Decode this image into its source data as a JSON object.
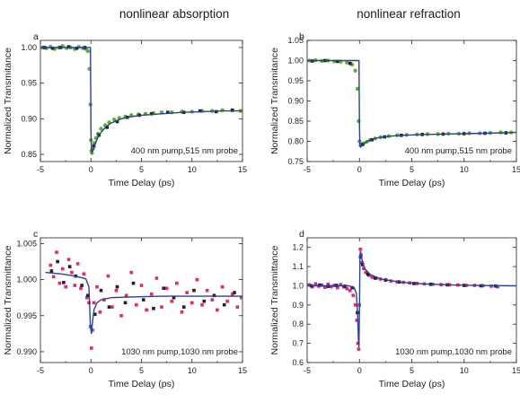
{
  "column_titles": [
    "nonlinear absorption",
    "nonlinear refraction"
  ],
  "colors": {
    "green_data": "#5ab52e",
    "dark_data": "#2a1a2a",
    "pink_data": "#e0296e",
    "fit_line": "#2a3f9e",
    "axis": "#222222"
  },
  "chart_data": [
    {
      "panel": "a",
      "type": "scatter",
      "annotation": "400 nm pump,515 nm probe",
      "xlabel": "Time Delay (ps)",
      "ylabel": "Normalized Transmitance",
      "xlim": [
        -5,
        15
      ],
      "ylim": [
        0.84,
        1.01
      ],
      "xticks": [
        -5,
        0,
        5,
        10,
        15
      ],
      "xtick_labels": [
        "-5",
        "0",
        "5",
        "10",
        "15"
      ],
      "yticks": [
        0.85,
        0.9,
        0.95,
        1.0
      ],
      "ytick_labels": [
        "0.85",
        "0.90",
        "0.95",
        "1.00"
      ],
      "series": [
        {
          "color": "green",
          "x": [
            -4.8,
            -4.4,
            -4.0,
            -3.6,
            -3.2,
            -2.8,
            -2.4,
            -2.0,
            -1.6,
            -1.2,
            -0.8,
            -0.5,
            -0.3,
            -0.15,
            -0.05,
            0.0,
            0.05,
            0.1,
            0.2,
            0.35,
            0.5,
            0.7,
            1.0,
            1.4,
            1.8,
            2.3,
            2.8,
            3.4,
            4.0,
            4.7,
            5.4,
            6.2,
            7.0,
            8.0,
            9.0,
            10.0,
            11.0,
            12.0,
            13.0,
            14.0,
            14.8
          ],
          "y": [
            1.0,
            0.999,
            1.001,
            0.998,
            1.0,
            1.002,
            0.999,
            1.0,
            0.998,
            1.001,
            0.999,
            0.998,
            0.995,
            0.97,
            0.92,
            0.87,
            0.855,
            0.852,
            0.858,
            0.866,
            0.873,
            0.879,
            0.886,
            0.891,
            0.895,
            0.899,
            0.901,
            0.903,
            0.905,
            0.906,
            0.907,
            0.908,
            0.909,
            0.909,
            0.91,
            0.91,
            0.911,
            0.911,
            0.912,
            0.912,
            0.911
          ]
        },
        {
          "color": "dark",
          "x": [
            -4.6,
            -3.8,
            -3.0,
            -2.2,
            -1.4,
            -0.6,
            0.3,
            0.8,
            1.6,
            2.6,
            3.6,
            4.8,
            6.0,
            7.6,
            9.2,
            10.8,
            12.4,
            14.0
          ],
          "y": [
            1.0,
            0.999,
            1.0,
            1.001,
            0.999,
            1.0,
            0.862,
            0.877,
            0.888,
            0.896,
            0.902,
            0.905,
            0.907,
            0.909,
            0.909,
            0.911,
            0.91,
            0.912
          ]
        }
      ],
      "fit": {
        "x": [
          -5,
          -0.05,
          0,
          0.05,
          0.1,
          0.2,
          0.3,
          0.5,
          0.7,
          1.0,
          1.5,
          2.0,
          3.0,
          4.0,
          5.0,
          7.0,
          9.0,
          11.0,
          13.0,
          15.0
        ],
        "y": [
          1.0,
          1.0,
          0.88,
          0.857,
          0.853,
          0.856,
          0.86,
          0.868,
          0.874,
          0.881,
          0.889,
          0.894,
          0.9,
          0.903,
          0.905,
          0.907,
          0.909,
          0.91,
          0.911,
          0.911
        ]
      }
    },
    {
      "panel": "b",
      "type": "scatter",
      "annotation": "400 nm pump,515 nm probe",
      "xlabel": "Time Delay (ps)",
      "ylabel": "Normalized Transmitance",
      "xlim": [
        -5,
        15
      ],
      "ylim": [
        0.75,
        1.05
      ],
      "xticks": [
        -5,
        0,
        5,
        10,
        15
      ],
      "xtick_labels": [
        "-5",
        "0",
        "5",
        "10",
        "15"
      ],
      "yticks": [
        0.75,
        0.8,
        0.85,
        0.9,
        0.95,
        1.0,
        1.05
      ],
      "ytick_labels": [
        "0.75",
        "0.80",
        "0.85",
        "0.90",
        "0.95",
        "1.00",
        "1.05"
      ],
      "series": [
        {
          "color": "green",
          "x": [
            -4.8,
            -4.2,
            -3.6,
            -3.0,
            -2.4,
            -1.8,
            -1.2,
            -0.7,
            -0.4,
            -0.2,
            -0.08,
            0.0,
            0.1,
            0.2,
            0.4,
            0.7,
            1.0,
            1.5,
            2.0,
            2.8,
            3.6,
            4.5,
            5.5,
            6.5,
            7.5,
            8.5,
            9.5,
            10.5,
            11.5,
            12.5,
            13.5,
            14.5
          ],
          "y": [
            1.0,
            1.001,
            0.999,
            1.0,
            0.998,
            0.997,
            0.995,
            0.99,
            0.975,
            0.93,
            0.85,
            0.8,
            0.79,
            0.792,
            0.795,
            0.799,
            0.803,
            0.807,
            0.81,
            0.813,
            0.815,
            0.816,
            0.817,
            0.818,
            0.818,
            0.819,
            0.819,
            0.82,
            0.82,
            0.821,
            0.822,
            0.822
          ]
        },
        {
          "color": "dark",
          "x": [
            -4.5,
            -3.3,
            -2.1,
            -0.9,
            0.3,
            1.2,
            2.4,
            4.0,
            6.0,
            8.0,
            10.0,
            12.0,
            14.0
          ],
          "y": [
            0.999,
            1.0,
            0.998,
            0.993,
            0.792,
            0.804,
            0.811,
            0.815,
            0.817,
            0.818,
            0.819,
            0.82,
            0.821
          ]
        }
      ],
      "fit": {
        "x": [
          -5,
          -0.05,
          0,
          0.05,
          0.1,
          0.2,
          0.4,
          0.7,
          1.0,
          1.5,
          2.0,
          3.0,
          4.0,
          6.0,
          8.0,
          10.0,
          12.0,
          15.0
        ],
        "y": [
          1.0,
          1.0,
          0.83,
          0.79,
          0.786,
          0.789,
          0.794,
          0.799,
          0.803,
          0.807,
          0.81,
          0.813,
          0.815,
          0.817,
          0.818,
          0.819,
          0.82,
          0.822
        ]
      }
    },
    {
      "panel": "c",
      "type": "scatter",
      "annotation": "1030 nm pump,1030 nm probe",
      "xlabel": "Time Delay (ps)",
      "ylabel": "Normalized Transmittance",
      "xlim": [
        -5,
        15
      ],
      "ylim": [
        0.9885,
        1.0058
      ],
      "xticks": [
        -5,
        0,
        5,
        10,
        15
      ],
      "xtick_labels": [
        "-5",
        "0",
        "5",
        "10",
        "15"
      ],
      "yticks": [
        0.99,
        0.995,
        1.0,
        1.005
      ],
      "ytick_labels": [
        "0.990",
        "0.995",
        "1.000",
        "1.005"
      ],
      "series": [
        {
          "color": "pink",
          "x": [
            -4.0,
            -3.7,
            -3.4,
            -3.1,
            -2.8,
            -2.5,
            -2.2,
            -1.9,
            -1.6,
            -1.3,
            -1.0,
            -0.7,
            -0.4,
            -0.2,
            -0.05,
            0.05,
            0.15,
            0.3,
            0.6,
            0.9,
            1.3,
            1.7,
            2.1,
            2.5,
            3.0,
            3.5,
            4.0,
            4.5,
            5.0,
            5.5,
            6.0,
            6.5,
            7.0,
            7.5,
            8.0,
            8.5,
            9.0,
            9.5,
            10.0,
            10.5,
            11.0,
            11.5,
            12.0,
            12.5,
            13.0,
            13.5,
            14.0,
            14.5,
            14.9
          ],
          "y": [
            1.002,
            1.0004,
            1.0038,
            0.9995,
            1.0015,
            0.999,
            1.0028,
            1.001,
            0.9992,
            1.0022,
            0.9988,
            1.0008,
            0.9975,
            0.9968,
            0.9935,
            0.9905,
            0.993,
            0.9968,
            0.999,
            0.9955,
            0.9972,
            1.0005,
            0.9962,
            0.9985,
            0.995,
            0.9978,
            1.001,
            0.9965,
            0.9992,
            0.9958,
            0.998,
            1.0002,
            0.9962,
            0.9988,
            0.997,
            0.9995,
            0.9955,
            0.9982,
            0.9968,
            1.0,
            0.9965,
            0.9985,
            0.9972,
            0.9958,
            0.999,
            0.997,
            0.998,
            0.9962,
            0.9975
          ]
        },
        {
          "color": "dark",
          "x": [
            -3.9,
            -3.3,
            -2.7,
            -2.1,
            -1.5,
            -0.9,
            -0.3,
            0.4,
            1.0,
            1.8,
            2.6,
            3.4,
            4.2,
            5.2,
            6.2,
            7.2,
            8.2,
            9.2,
            10.2,
            11.2,
            12.2,
            13.2,
            14.2
          ],
          "y": [
            1.0012,
            1.0025,
            0.9996,
            1.0018,
            1.0005,
            0.9992,
            0.9978,
            0.9952,
            0.9985,
            0.9962,
            0.999,
            0.9968,
            0.9995,
            0.9972,
            0.996,
            0.9988,
            0.9975,
            0.9962,
            0.9985,
            0.997,
            0.9978,
            0.9965,
            0.9982
          ]
        }
      ],
      "fit": {
        "x": [
          -4.5,
          -3,
          -2,
          -1,
          -0.5,
          -0.2,
          -0.05,
          0.05,
          0.15,
          0.3,
          0.6,
          1.0,
          2.0,
          4.0,
          7.0,
          10.0,
          15.0
        ],
        "y": [
          1.001,
          1.0008,
          1.0006,
          1.0003,
          1.0001,
          0.999,
          0.9935,
          0.9925,
          0.994,
          0.9958,
          0.9968,
          0.9972,
          0.9975,
          0.9976,
          0.9977,
          0.9977,
          0.9977
        ]
      }
    },
    {
      "panel": "d",
      "type": "scatter",
      "annotation": "1030 nm pump,1030 nm probe",
      "xlabel": "Time Delay (ps)",
      "ylabel": "Normalized Transmittance",
      "xlim": [
        -5,
        15
      ],
      "ylim": [
        0.6,
        1.25
      ],
      "xticks": [
        -5,
        0,
        5,
        10,
        15
      ],
      "xtick_labels": [
        "-5",
        "0",
        "5",
        "10",
        "15"
      ],
      "yticks": [
        0.6,
        0.7,
        0.8,
        0.9,
        1.0,
        1.1,
        1.2
      ],
      "ytick_labels": [
        "0.6",
        "0.7",
        "0.8",
        "0.9",
        "1.0",
        "1.1",
        "1.2"
      ],
      "series": [
        {
          "color": "pink",
          "x": [
            -4.8,
            -4.5,
            -4.2,
            -3.9,
            -3.6,
            -3.3,
            -3.0,
            -2.7,
            -2.4,
            -2.1,
            -1.8,
            -1.5,
            -1.2,
            -0.9,
            -0.6,
            -0.4,
            -0.25,
            -0.15,
            -0.08,
            0.0,
            0.08,
            0.15,
            0.25,
            0.4,
            0.6,
            0.9,
            1.2,
            1.6,
            2.0,
            2.5,
            3.0,
            3.6,
            4.2,
            4.8,
            5.5,
            6.2,
            7.0,
            7.8,
            8.6,
            9.4,
            10.2,
            11.0,
            11.8,
            12.6,
            13.2
          ],
          "y": [
            1.005,
            0.995,
            1.01,
            0.998,
            1.003,
            0.992,
            1.008,
            0.996,
            1.002,
            0.99,
            1.006,
            0.994,
            0.985,
            0.975,
            0.95,
            0.9,
            0.82,
            0.7,
            0.67,
            0.9,
            1.19,
            1.16,
            1.12,
            1.09,
            1.07,
            1.055,
            1.045,
            1.04,
            1.035,
            1.03,
            1.025,
            1.02,
            1.018,
            1.015,
            1.012,
            1.01,
            1.008,
            1.006,
            1.005,
            1.004,
            1.002,
            1.002,
            1.0,
            0.998,
            0.995
          ]
        },
        {
          "color": "dark",
          "x": [
            -4.6,
            -3.8,
            -3.0,
            -2.2,
            -1.4,
            -0.7,
            -0.2,
            0.1,
            0.3,
            0.8,
            1.5,
            2.5,
            3.8,
            5.2,
            6.8,
            8.4,
            10.0,
            11.6,
            13.0
          ],
          "y": [
            1.0,
            1.004,
            0.997,
            1.002,
            0.998,
            0.99,
            0.86,
            1.15,
            1.11,
            1.06,
            1.04,
            1.03,
            1.02,
            1.012,
            1.008,
            1.005,
            1.002,
            1.0,
            0.999
          ]
        }
      ],
      "fit": {
        "x": [
          -5,
          -1,
          -0.5,
          -0.3,
          -0.18,
          -0.1,
          -0.05,
          0,
          0.05,
          0.1,
          0.18,
          0.3,
          0.5,
          1.0,
          2.0,
          4.0,
          6.0,
          9.0,
          12.0,
          15.0
        ],
        "y": [
          1.0,
          1.0,
          0.99,
          0.96,
          0.85,
          0.72,
          0.68,
          0.9,
          1.15,
          1.18,
          1.16,
          1.12,
          1.09,
          1.06,
          1.035,
          1.018,
          1.01,
          1.004,
          1.001,
          1.0
        ]
      }
    }
  ]
}
